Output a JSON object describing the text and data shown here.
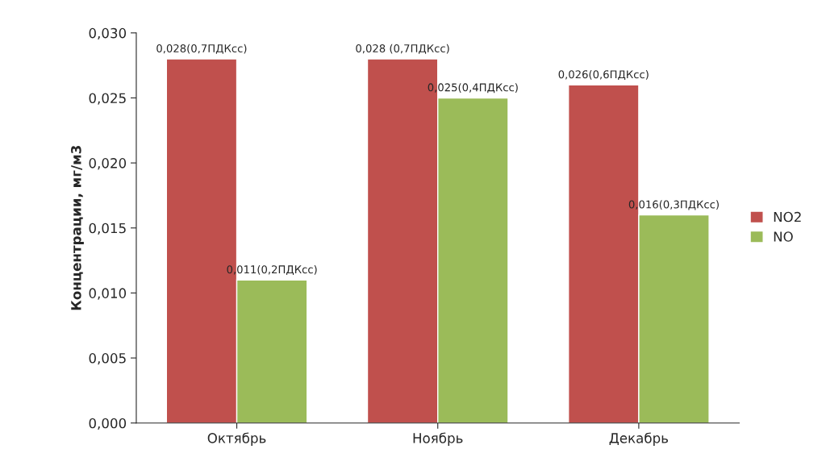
{
  "chart_data": {
    "type": "bar",
    "categories": [
      "Октябрь",
      "Ноябрь",
      "Декабрь"
    ],
    "ylabel": "Концентрации, мг/м3",
    "series": [
      {
        "name": "NO2",
        "color": "#c0504d",
        "values": [
          0.028,
          0.028,
          0.026
        ],
        "value_labels": [
          "0,028(0,7ПДКсс)",
          "0,028 (0,7ПДКсс)",
          "0,026(0,6ПДКсс)"
        ]
      },
      {
        "name": "NO",
        "color": "#9bbb59",
        "values": [
          0.011,
          0.025,
          0.016
        ],
        "value_labels": [
          "0,011(0,2ПДКсс)",
          "0,025(0,4ПДКсс)",
          "0,016(0,3ПДКсс)"
        ]
      }
    ],
    "ylim": [
      0,
      0.03
    ],
    "yticks": [
      {
        "value": 0,
        "label": "0,000"
      },
      {
        "value": 0.005,
        "label": "0,005"
      },
      {
        "value": 0.01,
        "label": "0,010"
      },
      {
        "value": 0.015,
        "label": "0,015"
      },
      {
        "value": 0.02,
        "label": "0,020"
      },
      {
        "value": 0.025,
        "label": "0,025"
      },
      {
        "value": 0.03,
        "label": "0,030"
      }
    ],
    "grid": false,
    "legend": "right"
  }
}
